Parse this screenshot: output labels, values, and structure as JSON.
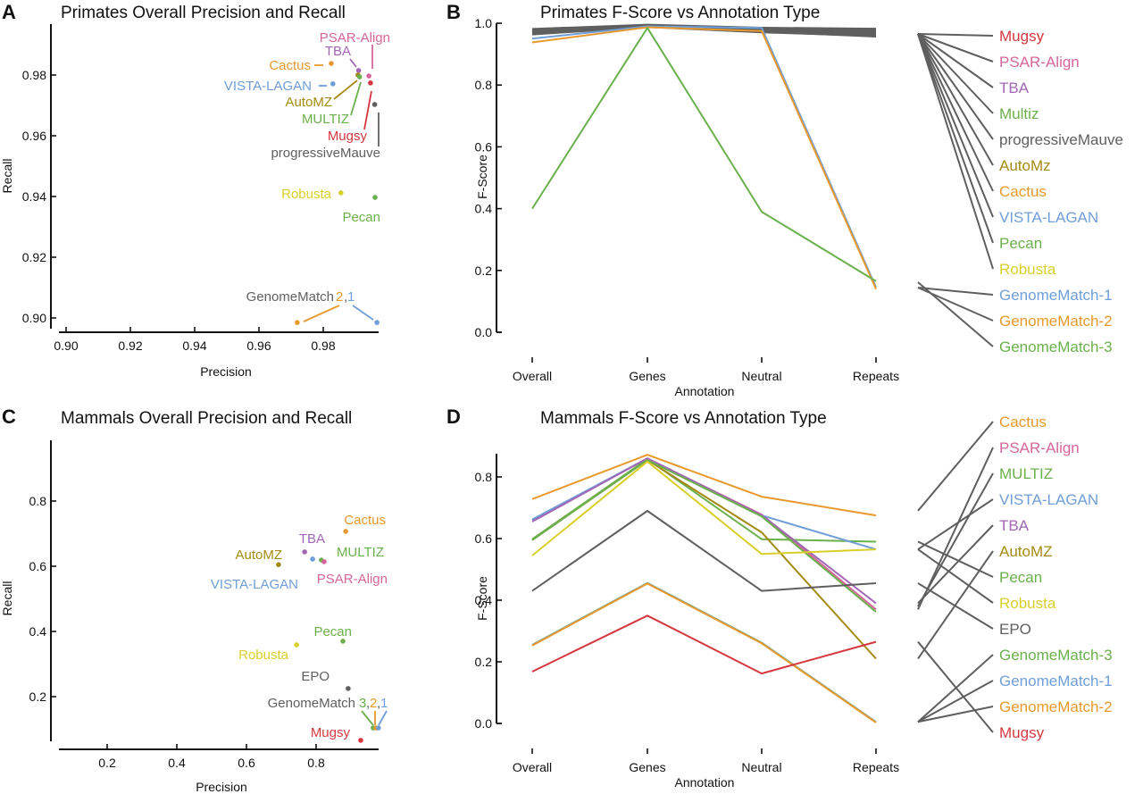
{
  "colors": {
    "Mugsy": "#d6373f",
    "PSAR-Align": "#d6669a",
    "TBA": "#a266b5",
    "MULTIZ": "#6ab04c",
    "Multiz": "#6ab04c",
    "progressiveMauve": "#5f5f5f",
    "AutoMZ": "#a38a12",
    "AutoMz": "#a38a12",
    "Cactus": "#e8992e",
    "VISTA-LAGAN": "#6f9ed8",
    "Pecan": "#6ab04c",
    "Robusta": "#d9cf2b",
    "EPO": "#5f5f5f",
    "GenomeMatch-1": "#6f9ed8",
    "GenomeMatch-2": "#e8992e",
    "GenomeMatch-3": "#6ab04c",
    "gray": "#5f5f5f",
    "axis": "#111111"
  },
  "chart_data": [
    {
      "panel": "A",
      "type": "scatter",
      "title": "Primates Overall Precision and Recall",
      "xlabel": "Precision",
      "ylabel": "Recall",
      "xlim": [
        0.895,
        0.997
      ],
      "ylim": [
        0.896,
        1.0
      ],
      "xticks": [
        "0.90",
        "0.92",
        "0.94",
        "0.96",
        "0.98"
      ],
      "yticks": [
        "0.90",
        "0.92",
        "0.94",
        "0.96",
        "0.98"
      ],
      "points": [
        {
          "name": "PSAR-Align",
          "label": "PSAR-Align",
          "x": 0.9942,
          "y": 0.9797
        },
        {
          "name": "TBA",
          "label": "TBA",
          "x": 0.991,
          "y": 0.9815
        },
        {
          "name": "Cactus",
          "label": "Cactus",
          "x": 0.9825,
          "y": 0.9838
        },
        {
          "name": "VISTA-LAGAN",
          "label": "VISTA-LAGAN",
          "x": 0.983,
          "y": 0.9771
        },
        {
          "name": "AutoMZ",
          "label": "AutoMZ",
          "x": 0.9908,
          "y": 0.98
        },
        {
          "name": "MULTIZ",
          "label": "MULTIZ",
          "x": 0.9913,
          "y": 0.9794
        },
        {
          "name": "Mugsy",
          "label": "Mugsy",
          "x": 0.9947,
          "y": 0.9774
        },
        {
          "name": "progressiveMauve",
          "label": "progressiveMauve",
          "x": 0.996,
          "y": 0.9703
        },
        {
          "name": "Robusta",
          "label": "Robusta",
          "x": 0.9855,
          "y": 0.9412
        },
        {
          "name": "Pecan",
          "label": "Pecan",
          "x": 0.9961,
          "y": 0.9397
        },
        {
          "name": "GenomeMatch-2",
          "label": "2",
          "x": 0.9719,
          "y": 0.8985
        },
        {
          "name": "GenomeMatch-1",
          "label": "1",
          "x": 0.9967,
          "y": 0.8985
        }
      ],
      "annotations": {
        "genomematch_prefix": "GenomeMatch ",
        "genomematch_sep": ","
      }
    },
    {
      "panel": "B",
      "type": "line",
      "title": "Primates F-Score vs Annotation Type",
      "xlabel": "Annotation",
      "ylabel": "F-Score",
      "categories": [
        "Overall",
        "Genes",
        "Neutral",
        "Repeats"
      ],
      "ylim": [
        0.0,
        1.0
      ],
      "yticks": [
        "0.0",
        "0.2",
        "0.4",
        "0.6",
        "0.8",
        "1.0"
      ],
      "legend": [
        "Mugsy",
        "PSAR-Align",
        "TBA",
        "Multiz",
        "progressiveMauve",
        "AutoMz",
        "Cactus",
        "VISTA-LAGAN",
        "Pecan",
        "Robusta",
        "GenomeMatch-1",
        "GenomeMatch-2",
        "GenomeMatch-3"
      ],
      "series": [
        {
          "name": "Mugsy",
          "values": [
            0.975,
            0.993,
            0.978,
            0.978
          ],
          "drawn_gray": true
        },
        {
          "name": "PSAR-Align",
          "values": [
            0.978,
            0.993,
            0.98,
            0.98
          ],
          "drawn_gray": true
        },
        {
          "name": "TBA",
          "values": [
            0.976,
            0.992,
            0.979,
            0.975
          ],
          "drawn_gray": true
        },
        {
          "name": "Multiz",
          "values": [
            0.972,
            0.992,
            0.976,
            0.972
          ],
          "drawn_gray": true
        },
        {
          "name": "progressiveMauve",
          "values": [
            0.968,
            0.991,
            0.974,
            0.958
          ],
          "drawn_gray": true
        },
        {
          "name": "AutoMz",
          "values": [
            0.97,
            0.991,
            0.975,
            0.968
          ],
          "drawn_gray": true
        },
        {
          "name": "Cactus",
          "values": [
            0.973,
            0.99,
            0.977,
            0.966
          ],
          "drawn_gray": true
        },
        {
          "name": "VISTA-LAGAN",
          "values": [
            0.966,
            0.99,
            0.973,
            0.962
          ],
          "drawn_gray": true
        },
        {
          "name": "Pecan",
          "values": [
            0.98,
            0.994,
            0.984,
            0.981
          ],
          "drawn_gray": true
        },
        {
          "name": "Robusta",
          "values": [
            0.965,
            0.989,
            0.972,
            0.96
          ],
          "drawn_gray": true
        },
        {
          "name": "GenomeMatch-1",
          "values": [
            0.95,
            0.99,
            0.985,
            0.145
          ]
        },
        {
          "name": "GenomeMatch-2",
          "values": [
            0.938,
            0.987,
            0.975,
            0.14
          ]
        },
        {
          "name": "GenomeMatch-3",
          "values": [
            0.4,
            0.985,
            0.39,
            0.165
          ]
        }
      ]
    },
    {
      "panel": "C",
      "type": "scatter",
      "title": "Mammals Overall Precision and Recall",
      "xlabel": "Precision",
      "ylabel": "Recall",
      "xlim": [
        0.07,
        0.985
      ],
      "ylim": [
        0.05,
        0.98
      ],
      "xticks": [
        "0.2",
        "0.4",
        "0.6",
        "0.8"
      ],
      "yticks": [
        "0.2",
        "0.4",
        "0.6",
        "0.8"
      ],
      "points": [
        {
          "name": "Cactus",
          "label": "Cactus",
          "x": 0.885,
          "y": 0.707
        },
        {
          "name": "TBA",
          "label": "TBA",
          "x": 0.767,
          "y": 0.644
        },
        {
          "name": "MULTIZ",
          "label": "MULTIZ",
          "x": 0.815,
          "y": 0.619
        },
        {
          "name": "AutoMZ",
          "label": "AutoMZ",
          "x": 0.692,
          "y": 0.605
        },
        {
          "name": "VISTA-LAGAN",
          "label": "VISTA-LAGAN",
          "x": 0.79,
          "y": 0.622
        },
        {
          "name": "PSAR-Align",
          "label": "PSAR-Align",
          "x": 0.823,
          "y": 0.614
        },
        {
          "name": "Pecan",
          "label": "Pecan",
          "x": 0.877,
          "y": 0.37
        },
        {
          "name": "Robusta",
          "label": "Robusta",
          "x": 0.744,
          "y": 0.359
        },
        {
          "name": "EPO",
          "label": "EPO",
          "x": 0.892,
          "y": 0.225
        },
        {
          "name": "GenomeMatch-3",
          "label": "3",
          "x": 0.964,
          "y": 0.104
        },
        {
          "name": "GenomeMatch-2",
          "label": "2",
          "x": 0.972,
          "y": 0.104
        },
        {
          "name": "GenomeMatch-1",
          "label": "1",
          "x": 0.979,
          "y": 0.104
        },
        {
          "name": "Mugsy",
          "label": "Mugsy",
          "x": 0.928,
          "y": 0.066
        }
      ],
      "annotations": {
        "genomematch_prefix": "GenomeMatch ",
        "genomematch_sep": ","
      }
    },
    {
      "panel": "D",
      "type": "line",
      "title": "Mammals F-Score vs Annotation Type",
      "xlabel": "Annotation",
      "ylabel": "F-Score",
      "categories": [
        "Overall",
        "Genes",
        "Neutral",
        "Repeats"
      ],
      "ylim": [
        0.0,
        0.87
      ],
      "yticks": [
        "0.0",
        "0.2",
        "0.4",
        "0.6",
        "0.8"
      ],
      "legend": [
        "Cactus",
        "PSAR-Align",
        "MULTIZ",
        "VISTA-LAGAN",
        "TBA",
        "AutoMZ",
        "Pecan",
        "Robusta",
        "EPO",
        "GenomeMatch-3",
        "GenomeMatch-1",
        "GenomeMatch-2",
        "Mugsy"
      ],
      "series": [
        {
          "name": "Cactus",
          "values": [
            0.728,
            0.872,
            0.736,
            0.675
          ]
        },
        {
          "name": "PSAR-Align",
          "values": [
            0.66,
            0.86,
            0.678,
            0.37
          ]
        },
        {
          "name": "MULTIZ",
          "values": [
            0.598,
            0.858,
            0.598,
            0.59
          ]
        },
        {
          "name": "VISTA-LAGAN",
          "values": [
            0.662,
            0.86,
            0.675,
            0.565
          ]
        },
        {
          "name": "TBA",
          "values": [
            0.655,
            0.86,
            0.676,
            0.39
          ]
        },
        {
          "name": "AutoMZ",
          "values": [
            0.595,
            0.855,
            0.62,
            0.21
          ]
        },
        {
          "name": "Pecan",
          "values": [
            0.595,
            0.855,
            0.672,
            0.362
          ]
        },
        {
          "name": "Robusta",
          "values": [
            0.545,
            0.85,
            0.55,
            0.565
          ]
        },
        {
          "name": "EPO",
          "values": [
            0.43,
            0.69,
            0.43,
            0.455
          ]
        },
        {
          "name": "GenomeMatch-3",
          "values": [
            0.255,
            0.456,
            0.262,
            0.005
          ]
        },
        {
          "name": "GenomeMatch-1",
          "values": [
            0.254,
            0.455,
            0.261,
            0.004
          ]
        },
        {
          "name": "GenomeMatch-2",
          "values": [
            0.253,
            0.454,
            0.26,
            0.003
          ]
        },
        {
          "name": "Mugsy",
          "values": [
            0.168,
            0.35,
            0.162,
            0.265
          ]
        }
      ]
    }
  ]
}
